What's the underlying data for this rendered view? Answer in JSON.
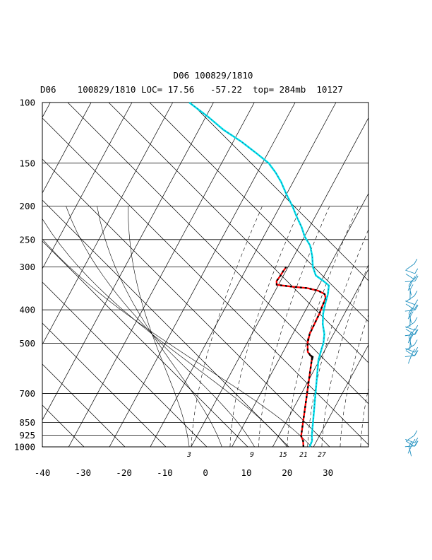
{
  "chart_data": {
    "type": "line",
    "title": "D06 100829/1810",
    "subtitle": "D06    100829/1810 LOC= 17.56   -57.22  top= 284mb  10127",
    "pressure_levels": [
      100,
      150,
      200,
      250,
      300,
      400,
      500,
      700,
      850,
      925,
      1000
    ],
    "temperature_ticks": [
      -40,
      -30,
      -20,
      -10,
      0,
      10,
      20,
      30
    ],
    "xlim": [
      -40,
      40
    ],
    "ylim": [
      1000,
      100
    ],
    "mixing_ratio_labels": [
      "3",
      "9",
      "15",
      "21",
      "27"
    ],
    "series": [
      {
        "color": "#ff0000",
        "points": [
          {
            "p": 1000,
            "t": 24.0
          },
          {
            "p": 960,
            "t": 23.1
          },
          {
            "p": 930,
            "t": 22.0
          },
          {
            "p": 550,
            "t": 14.3
          },
          {
            "p": 530,
            "t": 12.5
          },
          {
            "p": 500,
            "t": 11.3
          },
          {
            "p": 470,
            "t": 10.6
          },
          {
            "p": 450,
            "t": 10.5
          },
          {
            "p": 430,
            "t": 10.4
          },
          {
            "p": 410,
            "t": 10.3
          },
          {
            "p": 390,
            "t": 10.0
          },
          {
            "p": 370,
            "t": 9.8
          },
          {
            "p": 360,
            "t": 9.0
          },
          {
            "p": 352,
            "t": 7.0
          },
          {
            "p": 346,
            "t": 4.0
          },
          {
            "p": 343,
            "t": 0.5
          },
          {
            "p": 340,
            "t": -2.5
          },
          {
            "p": 338,
            "t": -4.0
          },
          {
            "p": 330,
            "t": -4.5
          },
          {
            "p": 320,
            "t": -4.3
          },
          {
            "p": 310,
            "t": -4.2
          },
          {
            "p": 300,
            "t": -4.0
          }
        ]
      },
      {
        "color": "#00e5ee",
        "points": [
          {
            "p": 1000,
            "t": 25.5
          },
          {
            "p": 960,
            "t": 25.3
          },
          {
            "p": 930,
            "t": 24.6
          },
          {
            "p": 560,
            "t": 16.2
          },
          {
            "p": 520,
            "t": 15.5
          },
          {
            "p": 500,
            "t": 15.2
          },
          {
            "p": 470,
            "t": 14.2
          },
          {
            "p": 440,
            "t": 12.5
          },
          {
            "p": 410,
            "t": 11.2
          },
          {
            "p": 380,
            "t": 10.3
          },
          {
            "p": 360,
            "t": 9.8
          },
          {
            "p": 340,
            "t": 8.9
          },
          {
            "p": 330,
            "t": 7.0
          },
          {
            "p": 318,
            "t": 4.4
          },
          {
            "p": 300,
            "t": 2.5
          },
          {
            "p": 280,
            "t": 1.0
          },
          {
            "p": 260,
            "t": -1.0
          },
          {
            "p": 245,
            "t": -3.5
          },
          {
            "p": 230,
            "t": -5.5
          },
          {
            "p": 215,
            "t": -8.0
          },
          {
            "p": 200,
            "t": -10.5
          },
          {
            "p": 185,
            "t": -13.5
          },
          {
            "p": 170,
            "t": -16.5
          },
          {
            "p": 160,
            "t": -19.0
          },
          {
            "p": 150,
            "t": -22.0
          },
          {
            "p": 140,
            "t": -26.5
          },
          {
            "p": 130,
            "t": -31.5
          },
          {
            "p": 120,
            "t": -37.5
          },
          {
            "p": 110,
            "t": -43.0
          },
          {
            "p": 100,
            "t": -49.5
          }
        ]
      },
      {
        "color": "#000000",
        "points": [
          {
            "p": 560,
            "t": 14.6
          },
          {
            "p": 548,
            "t": 14.4
          },
          {
            "p": 540,
            "t": 13.3
          }
        ]
      }
    ],
    "wind_barbs": {
      "color": "#1e8fbf",
      "upper": {
        "count": 26,
        "p_top": 300,
        "p_bottom": 555
      },
      "lower": {
        "count": 6,
        "p_top": 945,
        "p_bottom": 1030
      }
    }
  }
}
